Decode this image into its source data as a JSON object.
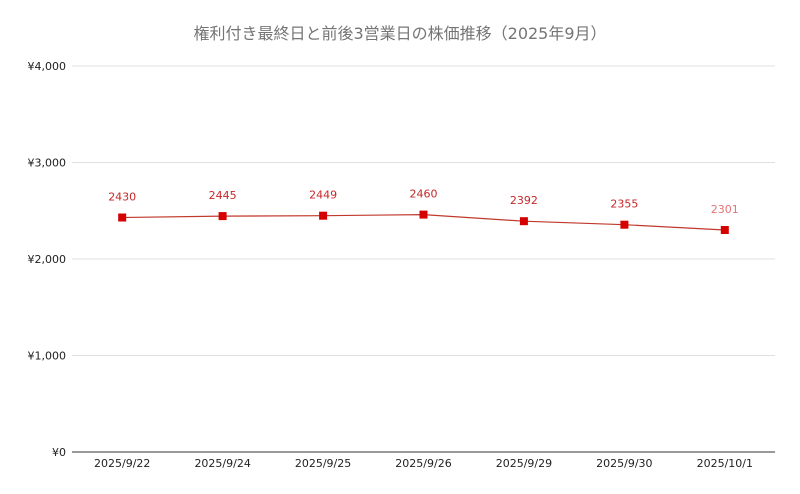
{
  "chart_data": {
    "type": "line",
    "title": "権利付き最終日と前後3営業日の株価推移（2025年9月）",
    "xlabel": "",
    "ylabel": "",
    "categories": [
      "2025/9/22",
      "2025/9/24",
      "2025/9/25",
      "2025/9/26",
      "2025/9/29",
      "2025/9/30",
      "2025/10/1"
    ],
    "series": [
      {
        "values": [
          2430,
          2445,
          2449,
          2460,
          2392,
          2355,
          2301
        ]
      }
    ],
    "data_labels": [
      "2430",
      "2445",
      "2449",
      "2460",
      "2392",
      "2355",
      "2301"
    ],
    "ylim": [
      0,
      4000
    ],
    "yticks": [
      0,
      1000,
      2000,
      3000,
      4000
    ],
    "ytick_labels": [
      "¥0",
      "¥1,000",
      "¥2,000",
      "¥3,000",
      "¥4,000"
    ],
    "grid": true,
    "legend": "none",
    "colors": {
      "line": "#c0392b",
      "marker": "#d50000",
      "label": "#c62828",
      "label_last": "#e57373",
      "grid": "#e0e0e0",
      "axis": "#333333"
    }
  }
}
